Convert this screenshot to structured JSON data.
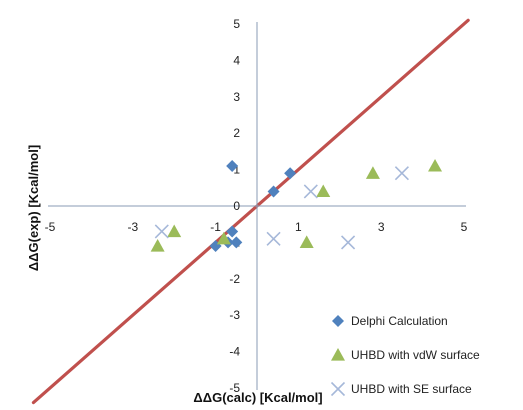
{
  "chart_data": {
    "type": "scatter",
    "xlabel": "ΔΔG(calc) [Kcal/mol]",
    "ylabel": "ΔΔG(exp) [Kcal/mol]",
    "xlim": [
      -5,
      5
    ],
    "ylim": [
      -5,
      5
    ],
    "x_ticks": [
      -5,
      -3,
      -1,
      1,
      3,
      5
    ],
    "x_tick_labels": [
      "-5",
      "-3",
      "-1",
      "1",
      "3",
      "5"
    ],
    "y_ticks": [
      -5,
      -4,
      -3,
      -2,
      -1,
      0,
      1,
      2,
      3,
      4,
      5
    ],
    "y_tick_labels": [
      "-5",
      "-4",
      "-3",
      "-2",
      "-1",
      "0",
      "1",
      "2",
      "3",
      "4",
      "5"
    ],
    "grid": false,
    "legend_position": "bottom-right",
    "reference_line": {
      "slope": 1,
      "intercept": 0,
      "color": "#c0504d"
    },
    "series": [
      {
        "name": "Delphi Calculation",
        "marker": "diamond",
        "color": "#4f81bd",
        "points": [
          {
            "x": -0.6,
            "y": 1.1
          },
          {
            "x": 0.4,
            "y": 0.4
          },
          {
            "x": 0.8,
            "y": 0.9
          },
          {
            "x": -1.0,
            "y": -1.1
          },
          {
            "x": -0.6,
            "y": -0.7
          },
          {
            "x": -0.7,
            "y": -1.0
          },
          {
            "x": -0.5,
            "y": -1.0
          }
        ]
      },
      {
        "name": "UHBD with vdW surface",
        "marker": "triangle",
        "color": "#9bbb59",
        "points": [
          {
            "x": -2.4,
            "y": -1.1
          },
          {
            "x": -2.0,
            "y": -0.7
          },
          {
            "x": -0.8,
            "y": -0.9
          },
          {
            "x": 1.2,
            "y": -1.0
          },
          {
            "x": 1.6,
            "y": 0.4
          },
          {
            "x": 2.8,
            "y": 0.9
          },
          {
            "x": 4.3,
            "y": 1.1
          }
        ]
      },
      {
        "name": "UHBD with SE surface",
        "marker": "x",
        "color": "#a6b8d9",
        "points": [
          {
            "x": -2.3,
            "y": -0.7
          },
          {
            "x": 0.4,
            "y": -0.9
          },
          {
            "x": 1.3,
            "y": 0.4
          },
          {
            "x": 2.2,
            "y": -1.0
          },
          {
            "x": 3.5,
            "y": 0.9
          }
        ]
      }
    ]
  }
}
